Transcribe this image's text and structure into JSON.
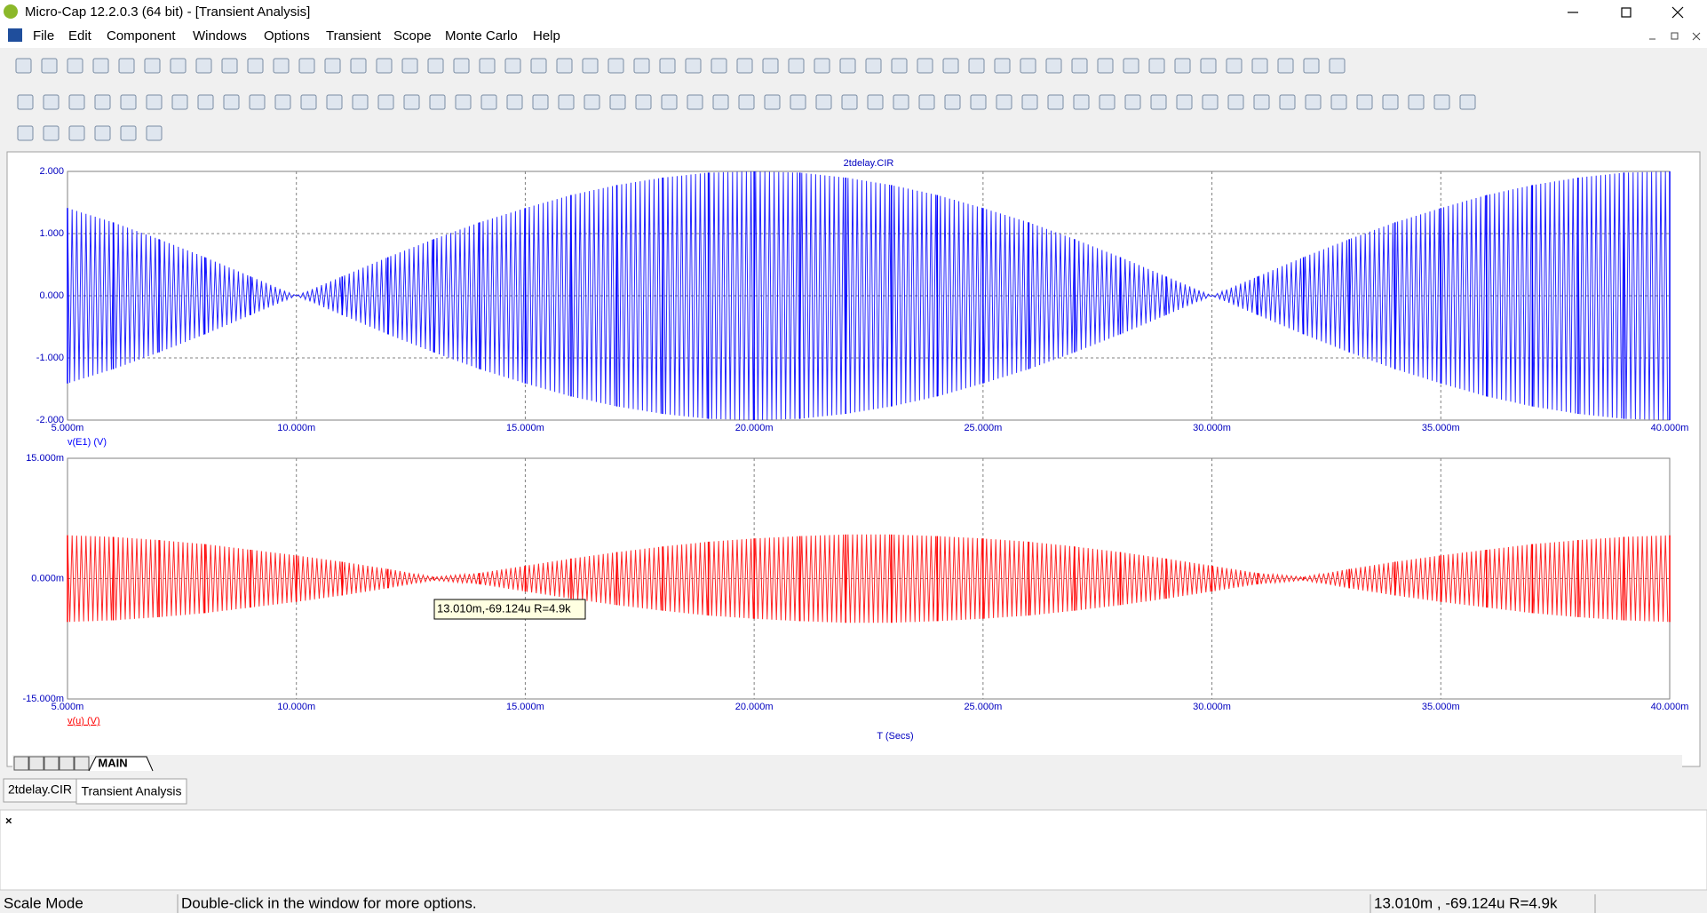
{
  "window": {
    "title": "Micro-Cap 12.2.0.3 (64 bit) - [Transient Analysis]",
    "menu": [
      "File",
      "Edit",
      "Component",
      "Windows",
      "Options",
      "Transient",
      "Scope",
      "Monte Carlo",
      "Help"
    ]
  },
  "chart_data": [
    {
      "type": "line",
      "title": "2tdelay.CIR",
      "x": [
        0.005,
        0.006,
        0.007,
        0.008,
        0.009,
        0.01,
        0.011,
        0.012,
        0.013,
        0.014,
        0.015,
        0.016,
        0.017,
        0.018,
        0.019,
        0.02,
        0.021,
        0.022,
        0.023,
        0.024,
        0.025,
        0.026,
        0.027,
        0.028,
        0.029,
        0.03,
        0.031,
        0.032,
        0.033,
        0.034,
        0.035,
        0.036,
        0.037,
        0.038,
        0.039,
        0.04
      ],
      "series": [
        {
          "name": "v(E1) (V)",
          "color": "#0000ff",
          "values": [
            1.41,
            1.18,
            0.91,
            0.62,
            0.31,
            0,
            0.31,
            0.62,
            0.91,
            1.18,
            1.41,
            1.62,
            1.78,
            1.9,
            1.98,
            2,
            1.98,
            1.9,
            1.78,
            1.62,
            1.41,
            1.18,
            0.91,
            0.62,
            0.31,
            0,
            0.31,
            0.62,
            0.91,
            1.18,
            1.41,
            1.62,
            1.78,
            1.9,
            1.98,
            2
          ]
        }
      ],
      "xlim": [
        0.005,
        0.04
      ],
      "ylim": [
        -2,
        2
      ],
      "xticks": [
        {
          "value": 0.005,
          "label": "5.000m"
        },
        {
          "value": 0.01,
          "label": "10.000m"
        },
        {
          "value": 0.015,
          "label": "15.000m"
        },
        {
          "value": 0.02,
          "label": "20.000m"
        },
        {
          "value": 0.025,
          "label": "25.000m"
        },
        {
          "value": 0.03,
          "label": "30.000m"
        },
        {
          "value": 0.035,
          "label": "35.000m"
        },
        {
          "value": 0.04,
          "label": "40.000m"
        }
      ],
      "yticks": [
        {
          "value": 2,
          "label": "2.000"
        },
        {
          "value": 1,
          "label": "1.000"
        },
        {
          "value": 0,
          "label": "0.000"
        },
        {
          "value": -1,
          "label": "-1.000"
        },
        {
          "value": -2,
          "label": "-2.000"
        }
      ],
      "grid": true
    },
    {
      "type": "line",
      "xlabel": "T (Secs)",
      "x": [
        0.005,
        0.006,
        0.007,
        0.008,
        0.009,
        0.01,
        0.011,
        0.012,
        0.013,
        0.014,
        0.015,
        0.016,
        0.017,
        0.018,
        0.019,
        0.02,
        0.021,
        0.022,
        0.023,
        0.024,
        0.025,
        0.026,
        0.027,
        0.028,
        0.029,
        0.03,
        0.031,
        0.032,
        0.033,
        0.034,
        0.035,
        0.036,
        0.037,
        0.038,
        0.039,
        0.04
      ],
      "series": [
        {
          "name": "v(u) (V)",
          "color": "#ff0000",
          "values": [
            0.0054,
            0.0052,
            0.0048,
            0.0043,
            0.0036,
            0.0029,
            0.0021,
            0.0012,
            0.0002,
            0.0007,
            0.0016,
            0.0025,
            0.0033,
            0.004,
            0.0046,
            0.005,
            0.0053,
            0.0055,
            0.0055,
            0.0053,
            0.005,
            0.0046,
            0.004,
            0.0033,
            0.0025,
            0.0016,
            0.0007,
            0.0002,
            0.0012,
            0.0021,
            0.0029,
            0.0036,
            0.0043,
            0.0048,
            0.0052,
            0.0054
          ]
        }
      ],
      "xlim": [
        0.005,
        0.04
      ],
      "ylim": [
        -0.015,
        0.015
      ],
      "xticks": [
        {
          "value": 0.005,
          "label": "5.000m"
        },
        {
          "value": 0.01,
          "label": "10.000m"
        },
        {
          "value": 0.015,
          "label": "15.000m"
        },
        {
          "value": 0.02,
          "label": "20.000m"
        },
        {
          "value": 0.025,
          "label": "25.000m"
        },
        {
          "value": 0.03,
          "label": "30.000m"
        },
        {
          "value": 0.035,
          "label": "35.000m"
        },
        {
          "value": 0.04,
          "label": "40.000m"
        }
      ],
      "yticks": [
        {
          "value": 0.015,
          "label": "15.000m"
        },
        {
          "value": 0,
          "label": "0.000m"
        },
        {
          "value": -0.015,
          "label": "-15.000m"
        }
      ],
      "grid": true
    }
  ],
  "tooltip": "13.010m,-69.124u R=4.9k",
  "page_tab": "MAIN",
  "doc_tabs": [
    "2tdelay.CIR",
    "Transient Analysis"
  ],
  "status": [
    "Scale Mode",
    "Double-click in the window for more options.",
    "13.010m , -69.124u R=4.9k"
  ]
}
